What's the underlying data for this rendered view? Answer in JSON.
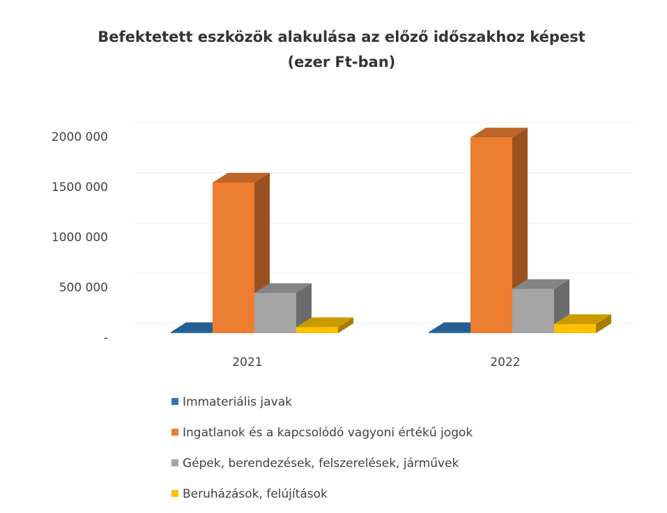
{
  "chart_data": {
    "type": "bar3d",
    "title": "Befektetett eszközök alakulása az előző időszakhoz képest",
    "subtitle": "(ezer Ft-ban)",
    "categories": [
      "2021",
      "2022"
    ],
    "series": [
      {
        "name": "Immateriális javak",
        "color": "#2e75b6",
        "values": [
          10000,
          10000
        ]
      },
      {
        "name": "Ingatlanok és a kapcsolódó vagyoni értékű jogok",
        "color": "#ed7d31",
        "values": [
          1500000,
          1950000
        ]
      },
      {
        "name": "Gépek, berendezések, felszerelések, járművek",
        "color": "#a5a5a5",
        "values": [
          400000,
          440000
        ]
      },
      {
        "name": "Beruházások, felújítások",
        "color": "#ffc000",
        "values": [
          60000,
          90000
        ]
      }
    ],
    "ylim": [
      0,
      2000000
    ],
    "yticks": [
      {
        "value": 0,
        "label": "-"
      },
      {
        "value": 500000,
        "label": "500 000"
      },
      {
        "value": 1000000,
        "label": "1000 000"
      },
      {
        "value": 1500000,
        "label": "1500 000"
      },
      {
        "value": 2000000,
        "label": "2000 000"
      }
    ],
    "grid": true
  }
}
